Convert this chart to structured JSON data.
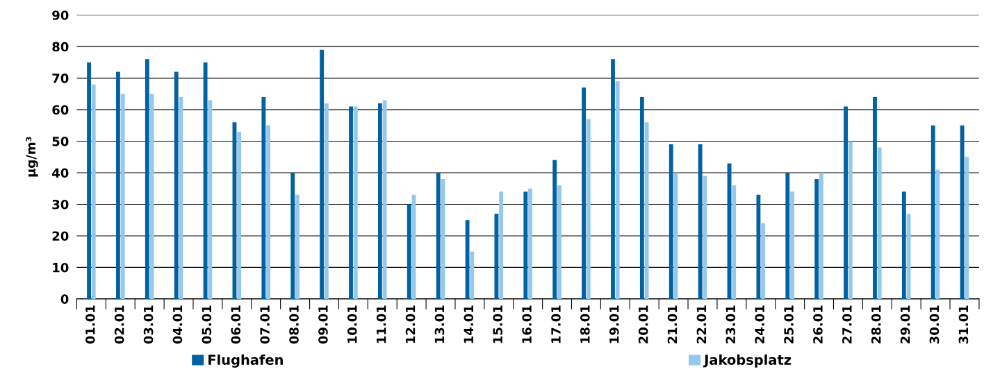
{
  "chart_data": {
    "type": "bar",
    "ylabel": "µg/m³",
    "categories": [
      "01.01",
      "02.01",
      "03.01",
      "04.01",
      "05.01",
      "06.01",
      "07.01",
      "08.01",
      "09.01",
      "10.01",
      "11.01",
      "12.01",
      "13.01",
      "14.01",
      "15.01",
      "16.01",
      "17.01",
      "18.01",
      "19.01",
      "20.01",
      "21.01",
      "22.01",
      "23.01",
      "24.01",
      "25.01",
      "26.01",
      "27.01",
      "28.01",
      "29.01",
      "30.01",
      "31.01"
    ],
    "series": [
      {
        "name": "Flughafen",
        "color": "#0062a1",
        "values": [
          75,
          72,
          76,
          72,
          75,
          56,
          64,
          40,
          79,
          61,
          62,
          30,
          40,
          25,
          27,
          34,
          44,
          67,
          76,
          64,
          49,
          49,
          43,
          33,
          40,
          38,
          61,
          64,
          34,
          55,
          55
        ]
      },
      {
        "name": "Jakobsplatz",
        "color": "#94c8ec",
        "values": [
          68,
          65,
          65,
          64,
          63,
          53,
          55,
          33,
          62,
          61,
          63,
          33,
          38,
          15,
          34,
          35,
          36,
          57,
          69,
          56,
          40,
          39,
          36,
          24,
          34,
          40,
          50,
          48,
          27,
          41,
          45
        ]
      }
    ],
    "ylim": [
      0,
      90
    ],
    "yticks": [
      0,
      10,
      20,
      30,
      40,
      50,
      60,
      70,
      80,
      90
    ],
    "grid": "y",
    "legend": "bottom"
  }
}
